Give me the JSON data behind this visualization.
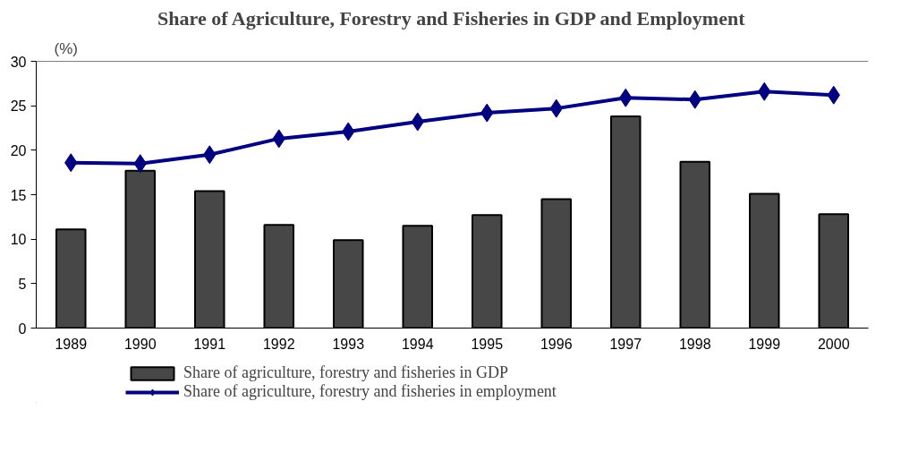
{
  "chart_data": {
    "type": "bar",
    "title": "Share of Agriculture, Forestry and Fisheries in GDP and Employment",
    "ylabel": "(%)",
    "categories": [
      "1989",
      "1990",
      "1991",
      "1992",
      "1993",
      "1994",
      "1995",
      "1996",
      "1997",
      "1998",
      "1999",
      "2000"
    ],
    "series": [
      {
        "name": "Share of agriculture, forestry and fisheries in GDP",
        "color": "#474747",
        "values": [
          11.1,
          17.7,
          15.4,
          11.6,
          9.9,
          11.5,
          12.7,
          14.5,
          23.8,
          18.7,
          15.1,
          12.8
        ]
      },
      {
        "name": "Share of agriculture, forestry and fisheries in employment",
        "type": "line",
        "color": "#000080",
        "marker": "diamond",
        "values": [
          18.6,
          18.5,
          19.5,
          21.3,
          22.1,
          23.2,
          24.2,
          24.7,
          25.9,
          25.7,
          26.6,
          26.2
        ]
      }
    ],
    "ylim": [
      0,
      30
    ],
    "yticks": [
      0,
      5,
      10,
      15,
      20,
      25,
      30
    ],
    "grid": false,
    "legend": "bottom"
  }
}
